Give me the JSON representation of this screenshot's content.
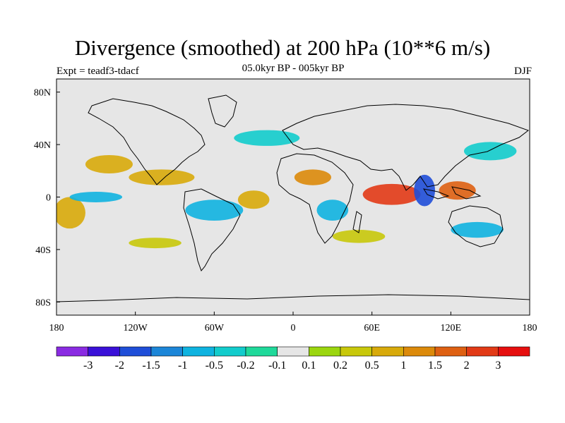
{
  "title": "Divergence (smoothed) at 200 hPa (10**6 m/s)",
  "experiment": "Expt = teadf3-tdacf",
  "period": "05.0kyr BP - 005kyr BP",
  "season": "DJF",
  "map": {
    "projection": "cylindrical equidistant",
    "lon_range": [
      -180,
      180
    ],
    "lat_range": [
      -90,
      90
    ],
    "x_ticks": [
      {
        "lon": -180,
        "label": "180"
      },
      {
        "lon": -120,
        "label": "120W"
      },
      {
        "lon": -60,
        "label": "60W"
      },
      {
        "lon": 0,
        "label": "0"
      },
      {
        "lon": 60,
        "label": "60E"
      },
      {
        "lon": 120,
        "label": "120E"
      },
      {
        "lon": 180,
        "label": "180"
      }
    ],
    "y_ticks": [
      {
        "lat": 80,
        "label": "80N"
      },
      {
        "lat": 40,
        "label": "40N"
      },
      {
        "lat": 0,
        "label": "0"
      },
      {
        "lat": -40,
        "label": "40S"
      },
      {
        "lat": -80,
        "label": "80S"
      }
    ],
    "background_color": "#e6e6e6"
  },
  "colorbar": {
    "colors": [
      "#8a2be2",
      "#3a10d8",
      "#1f4ed8",
      "#1c86d8",
      "#0fb3e0",
      "#12cccc",
      "#1fd99a",
      "#e6e6e6",
      "#9bd60f",
      "#c8c80a",
      "#d8aa0a",
      "#dc8a0a",
      "#de6012",
      "#e23a16",
      "#e60f0f"
    ],
    "labels": [
      "-3",
      "-2",
      "-1.5",
      "-1",
      "-0.5",
      "-0.2",
      "-0.1",
      "0.1",
      "0.2",
      "0.5",
      "1",
      "1.5",
      "2",
      "3"
    ]
  },
  "chart_data": {
    "type": "heatmap",
    "title": "Divergence (smoothed) at 200 hPa (10**6 m/s)",
    "notes": "",
    "features": [
      {
        "lon": 75,
        "lat": 2,
        "value": 2.5,
        "rx": 22,
        "ry": 8
      },
      {
        "lon": 125,
        "lat": 5,
        "value": 2.0,
        "rx": 14,
        "ry": 7
      },
      {
        "lon": 15,
        "lat": 15,
        "value": 1.2,
        "rx": 14,
        "ry": 6
      },
      {
        "lon": -100,
        "lat": 15,
        "value": 1.0,
        "rx": 25,
        "ry": 6
      },
      {
        "lon": -140,
        "lat": 25,
        "value": 0.8,
        "rx": 18,
        "ry": 7
      },
      {
        "lon": -30,
        "lat": -2,
        "value": 0.7,
        "rx": 12,
        "ry": 7
      },
      {
        "lon": -170,
        "lat": -12,
        "value": 0.8,
        "rx": 12,
        "ry": 12
      },
      {
        "lon": 50,
        "lat": -30,
        "value": 0.4,
        "rx": 20,
        "ry": 5
      },
      {
        "lon": -105,
        "lat": -35,
        "value": 0.5,
        "rx": 20,
        "ry": 4
      },
      {
        "lon": 100,
        "lat": 5,
        "value": -1.5,
        "rx": 8,
        "ry": 12
      },
      {
        "lon": -60,
        "lat": -10,
        "value": -0.6,
        "rx": 22,
        "ry": 8
      },
      {
        "lon": 30,
        "lat": -10,
        "value": -0.5,
        "rx": 12,
        "ry": 8
      },
      {
        "lon": -150,
        "lat": 0,
        "value": -0.5,
        "rx": 20,
        "ry": 4
      },
      {
        "lon": 140,
        "lat": -25,
        "value": -0.5,
        "rx": 20,
        "ry": 6
      },
      {
        "lon": -20,
        "lat": 45,
        "value": -0.3,
        "rx": 25,
        "ry": 6
      },
      {
        "lon": 150,
        "lat": 35,
        "value": -0.4,
        "rx": 20,
        "ry": 7
      }
    ]
  }
}
